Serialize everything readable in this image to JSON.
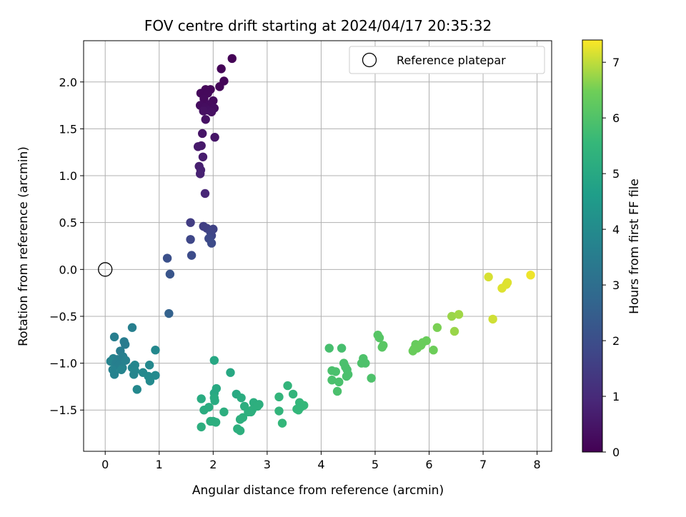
{
  "chart_data": {
    "type": "scatter",
    "title": "FOV centre drift starting at 2024/04/17 20:35:32",
    "xlabel": "Angular distance from reference (arcmin)",
    "ylabel": "Rotation from reference (arcmin)",
    "xlim": [
      -0.4,
      8.27
    ],
    "ylim": [
      -1.94,
      2.44
    ],
    "xticks": [
      0,
      1,
      2,
      3,
      4,
      5,
      6,
      7,
      8
    ],
    "yticks": [
      -1.5,
      -1.0,
      -0.5,
      0.0,
      0.5,
      1.0,
      1.5,
      2.0
    ],
    "ytick_labels": [
      "−1.5",
      "−1.0",
      "−0.5",
      "0.0",
      "0.5",
      "1.0",
      "1.5",
      "2.0"
    ],
    "grid": true,
    "legend": {
      "placement": "top-right",
      "entries": [
        "Reference platepar"
      ]
    },
    "reference_point": {
      "x": 0,
      "y": 0,
      "marker": "open-circle"
    },
    "colorbar": {
      "label": "Hours from first FF file",
      "colormap": "viridis",
      "range": [
        0,
        7.4
      ],
      "ticks": [
        0,
        1,
        2,
        3,
        4,
        5,
        6,
        7
      ]
    },
    "points": [
      [
        2.35,
        2.25,
        0.05
      ],
      [
        2.15,
        2.14,
        0.07
      ],
      [
        2.2,
        2.01,
        0.09
      ],
      [
        2.12,
        1.95,
        0.11
      ],
      [
        1.95,
        1.92,
        0.13
      ],
      [
        1.86,
        1.92,
        0.15
      ],
      [
        1.77,
        1.88,
        0.17
      ],
      [
        1.9,
        1.88,
        0.19
      ],
      [
        1.83,
        1.82,
        0.21
      ],
      [
        2.0,
        1.8,
        0.23
      ],
      [
        1.93,
        1.76,
        0.25
      ],
      [
        1.76,
        1.75,
        0.27
      ],
      [
        1.85,
        1.73,
        0.29
      ],
      [
        2.02,
        1.72,
        0.31
      ],
      [
        1.9,
        1.7,
        0.33
      ],
      [
        1.97,
        1.68,
        0.35
      ],
      [
        1.82,
        1.69,
        0.37
      ],
      [
        1.86,
        1.6,
        0.39
      ],
      [
        1.8,
        1.45,
        0.45
      ],
      [
        2.03,
        1.41,
        0.5
      ],
      [
        1.78,
        1.32,
        0.55
      ],
      [
        1.72,
        1.31,
        0.6
      ],
      [
        1.81,
        1.2,
        0.65
      ],
      [
        1.74,
        1.1,
        0.7
      ],
      [
        1.77,
        1.06,
        0.74
      ],
      [
        1.76,
        1.02,
        0.78
      ],
      [
        1.85,
        0.81,
        0.9
      ],
      [
        1.58,
        0.5,
        1.5
      ],
      [
        1.82,
        0.46,
        1.55
      ],
      [
        1.88,
        0.44,
        1.6
      ],
      [
        2.0,
        0.43,
        1.65
      ],
      [
        1.95,
        0.4,
        1.7
      ],
      [
        1.97,
        0.36,
        1.75
      ],
      [
        1.58,
        0.32,
        1.8
      ],
      [
        1.92,
        0.33,
        1.85
      ],
      [
        1.97,
        0.28,
        1.9
      ],
      [
        1.6,
        0.15,
        1.95
      ],
      [
        1.15,
        0.12,
        2.05
      ],
      [
        1.2,
        -0.05,
        2.2
      ],
      [
        1.18,
        -0.47,
        2.6
      ],
      [
        0.5,
        -0.62,
        3.6
      ],
      [
        0.17,
        -0.72,
        3.55
      ],
      [
        0.35,
        -0.77,
        3.5
      ],
      [
        0.37,
        -0.8,
        3.45
      ],
      [
        0.93,
        -0.86,
        3.9
      ],
      [
        0.28,
        -0.87,
        3.5
      ],
      [
        0.33,
        -0.93,
        3.6
      ],
      [
        0.15,
        -0.95,
        3.7
      ],
      [
        0.23,
        -0.96,
        3.55
      ],
      [
        0.38,
        -0.97,
        3.65
      ],
      [
        0.1,
        -0.98,
        3.75
      ],
      [
        0.2,
        -1.0,
        3.6
      ],
      [
        0.25,
        -1.02,
        3.6
      ],
      [
        0.55,
        -1.02,
        3.85
      ],
      [
        0.82,
        -1.02,
        3.9
      ],
      [
        0.32,
        -1.05,
        3.65
      ],
      [
        0.5,
        -1.05,
        3.8
      ],
      [
        0.14,
        -1.07,
        3.7
      ],
      [
        0.3,
        -1.07,
        3.75
      ],
      [
        0.55,
        -1.08,
        3.85
      ],
      [
        0.7,
        -1.1,
        3.9
      ],
      [
        0.17,
        -1.12,
        3.7
      ],
      [
        0.53,
        -1.12,
        3.8
      ],
      [
        0.93,
        -1.13,
        3.95
      ],
      [
        0.8,
        -1.14,
        3.95
      ],
      [
        0.83,
        -1.19,
        3.95
      ],
      [
        0.59,
        -1.28,
        3.9
      ],
      [
        2.02,
        -0.97,
        4.95
      ],
      [
        2.32,
        -1.1,
        5.0
      ],
      [
        2.06,
        -1.27,
        5.05
      ],
      [
        2.02,
        -1.32,
        5.0
      ],
      [
        2.43,
        -1.33,
        5.05
      ],
      [
        1.78,
        -1.38,
        5.1
      ],
      [
        2.52,
        -1.37,
        5.15
      ],
      [
        2.02,
        -1.37,
        5.1
      ],
      [
        2.03,
        -1.4,
        5.1
      ],
      [
        2.75,
        -1.42,
        5.2
      ],
      [
        2.85,
        -1.44,
        5.2
      ],
      [
        2.82,
        -1.46,
        5.25
      ],
      [
        2.58,
        -1.46,
        5.2
      ],
      [
        1.92,
        -1.47,
        5.15
      ],
      [
        1.83,
        -1.5,
        5.15
      ],
      [
        2.72,
        -1.5,
        5.25
      ],
      [
        2.65,
        -1.52,
        5.25
      ],
      [
        2.2,
        -1.52,
        5.2
      ],
      [
        2.7,
        -1.52,
        5.25
      ],
      [
        2.5,
        -1.6,
        5.25
      ],
      [
        2.55,
        -1.58,
        5.25
      ],
      [
        2.0,
        -1.62,
        5.2
      ],
      [
        1.95,
        -1.62,
        5.2
      ],
      [
        2.05,
        -1.63,
        5.2
      ],
      [
        1.78,
        -1.68,
        5.2
      ],
      [
        2.45,
        -1.7,
        5.25
      ],
      [
        2.5,
        -1.72,
        5.25
      ],
      [
        3.38,
        -1.24,
        5.45
      ],
      [
        3.48,
        -1.33,
        5.45
      ],
      [
        3.22,
        -1.36,
        5.45
      ],
      [
        3.6,
        -1.42,
        5.5
      ],
      [
        3.68,
        -1.45,
        5.55
      ],
      [
        3.62,
        -1.47,
        5.5
      ],
      [
        3.55,
        -1.49,
        5.5
      ],
      [
        3.58,
        -1.5,
        5.5
      ],
      [
        3.22,
        -1.51,
        5.45
      ],
      [
        3.28,
        -1.64,
        5.5
      ],
      [
        4.15,
        -0.84,
        5.85
      ],
      [
        4.38,
        -0.84,
        5.85
      ],
      [
        4.42,
        -1.0,
        5.9
      ],
      [
        4.45,
        -1.04,
        5.9
      ],
      [
        4.78,
        -0.95,
        5.95
      ],
      [
        4.75,
        -1.0,
        5.95
      ],
      [
        4.82,
        -1.0,
        5.95
      ],
      [
        4.48,
        -1.07,
        5.9
      ],
      [
        4.2,
        -1.08,
        5.9
      ],
      [
        4.27,
        -1.09,
        5.9
      ],
      [
        4.5,
        -1.12,
        5.9
      ],
      [
        4.47,
        -1.14,
        5.9
      ],
      [
        4.93,
        -1.16,
        5.95
      ],
      [
        4.2,
        -1.18,
        5.9
      ],
      [
        4.33,
        -1.2,
        5.9
      ],
      [
        4.3,
        -1.3,
        5.9
      ],
      [
        5.05,
        -0.7,
        6.1
      ],
      [
        5.08,
        -0.73,
        6.1
      ],
      [
        5.15,
        -0.81,
        6.15
      ],
      [
        5.13,
        -0.83,
        6.15
      ],
      [
        5.75,
        -0.8,
        6.35
      ],
      [
        5.82,
        -0.81,
        6.35
      ],
      [
        5.95,
        -0.76,
        6.4
      ],
      [
        5.88,
        -0.78,
        6.4
      ],
      [
        5.85,
        -0.81,
        6.4
      ],
      [
        5.78,
        -0.84,
        6.4
      ],
      [
        5.72,
        -0.85,
        6.4
      ],
      [
        5.7,
        -0.87,
        6.4
      ],
      [
        6.08,
        -0.86,
        6.45
      ],
      [
        6.15,
        -0.62,
        6.55
      ],
      [
        6.42,
        -0.5,
        6.75
      ],
      [
        6.55,
        -0.48,
        6.8
      ],
      [
        6.47,
        -0.66,
        6.75
      ],
      [
        7.1,
        -0.08,
        7.15
      ],
      [
        7.45,
        -0.14,
        7.2
      ],
      [
        7.43,
        -0.16,
        7.2
      ],
      [
        7.35,
        -0.2,
        7.2
      ],
      [
        7.18,
        -0.53,
        7.1
      ],
      [
        7.88,
        -0.06,
        7.3
      ]
    ]
  }
}
